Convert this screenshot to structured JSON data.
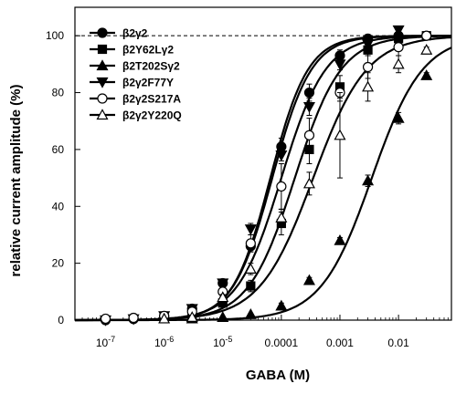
{
  "chart_data": {
    "type": "line",
    "title": "",
    "xlabel": "GABA (M)",
    "ylabel": "relative current amplitude (%)",
    "x_scale": "log",
    "xlim": [
      3e-08,
      0.08
    ],
    "ylim": [
      0,
      110
    ],
    "reference_line": {
      "y": 100,
      "style": "dashed"
    },
    "x_ticks": [
      {
        "value": 1e-07,
        "base": "10",
        "exp": "-7",
        "text": ""
      },
      {
        "value": 1e-06,
        "base": "10",
        "exp": "-6",
        "text": ""
      },
      {
        "value": 1e-05,
        "base": "10",
        "exp": "-5",
        "text": ""
      },
      {
        "value": 0.0001,
        "base": "",
        "exp": "",
        "text": "0.0001"
      },
      {
        "value": 0.001,
        "base": "",
        "exp": "",
        "text": "0.001"
      },
      {
        "value": 0.01,
        "base": "",
        "exp": "",
        "text": "0.01"
      }
    ],
    "y_ticks": [
      0,
      20,
      40,
      60,
      80,
      100
    ],
    "legend_position": "top-left",
    "series": [
      {
        "name": "β2γ2",
        "marker": "circle-filled",
        "ec50": 7e-05,
        "hill": 1.3,
        "x": [
          1e-07,
          3e-07,
          1e-06,
          3e-06,
          1e-05,
          3e-05,
          0.0001,
          0.0003,
          0.001,
          0.003,
          0.01,
          0.03
        ],
        "y": [
          0,
          0.4,
          1.2,
          4,
          13,
          26,
          61,
          80,
          93,
          99,
          100,
          100
        ],
        "err": [
          0,
          0,
          0,
          0,
          1,
          2,
          3,
          3,
          2,
          1,
          1,
          0
        ]
      },
      {
        "name": "β2Y62Lγ2",
        "marker": "square-filled",
        "ec50": 0.00017,
        "hill": 1.1,
        "x": [
          1e-06,
          3e-06,
          1e-05,
          3e-05,
          0.0001,
          0.0003,
          0.001,
          0.003,
          0.01,
          0.03
        ],
        "y": [
          0.5,
          2,
          6,
          12,
          34,
          60,
          82,
          95,
          99,
          100
        ],
        "err": [
          0,
          0,
          1,
          2,
          4,
          5,
          4,
          2,
          1,
          0
        ]
      },
      {
        "name": "β2T202Sγ2",
        "marker": "triangle-up-filled",
        "ec50": 0.0035,
        "hill": 1.0,
        "x": [
          3e-06,
          1e-05,
          3e-05,
          0.0001,
          0.0003,
          0.001,
          0.003,
          0.01,
          0.03
        ],
        "y": [
          0.5,
          1,
          2,
          5,
          14,
          28,
          49,
          71,
          86
        ],
        "err": [
          0,
          0,
          0,
          1,
          1,
          1,
          2,
          2,
          1
        ]
      },
      {
        "name": "β2γ2F77Y",
        "marker": "triangle-down-filled",
        "ec50": 6.5e-05,
        "hill": 1.35,
        "x": [
          1e-07,
          3e-07,
          1e-06,
          3e-06,
          1e-05,
          3e-05,
          0.0001,
          0.0003,
          0.001,
          0.003,
          0.01
        ],
        "y": [
          0,
          0.4,
          1.5,
          4,
          13,
          32,
          58,
          75,
          90,
          97,
          102
        ],
        "err": [
          0,
          0,
          0,
          0,
          1,
          2,
          2,
          3,
          2,
          1,
          1
        ]
      },
      {
        "name": "β2γ2S217A",
        "marker": "circle-open",
        "ec50": 0.0001,
        "hill": 1.15,
        "x": [
          1e-07,
          3e-07,
          1e-06,
          3e-06,
          1e-05,
          3e-05,
          0.0001,
          0.0003,
          0.001,
          0.003,
          0.01,
          0.03
        ],
        "y": [
          0.5,
          0.8,
          1.5,
          3,
          10,
          27,
          47,
          65,
          80,
          89,
          96,
          100
        ],
        "err": [
          0,
          0,
          0,
          0,
          2,
          3,
          8,
          6,
          3,
          4,
          3,
          0
        ]
      },
      {
        "name": "β2γ2Y220Q",
        "marker": "triangle-up-open",
        "ec50": 0.00035,
        "hill": 0.95,
        "x": [
          1e-06,
          3e-06,
          1e-05,
          3e-05,
          0.0001,
          0.0003,
          0.001,
          0.003,
          0.01,
          0.03
        ],
        "y": [
          0.5,
          1,
          8,
          18,
          36,
          48,
          65,
          82,
          90,
          95
        ],
        "err": [
          0,
          0,
          1,
          2,
          3,
          4,
          15,
          5,
          3,
          1
        ]
      }
    ]
  }
}
